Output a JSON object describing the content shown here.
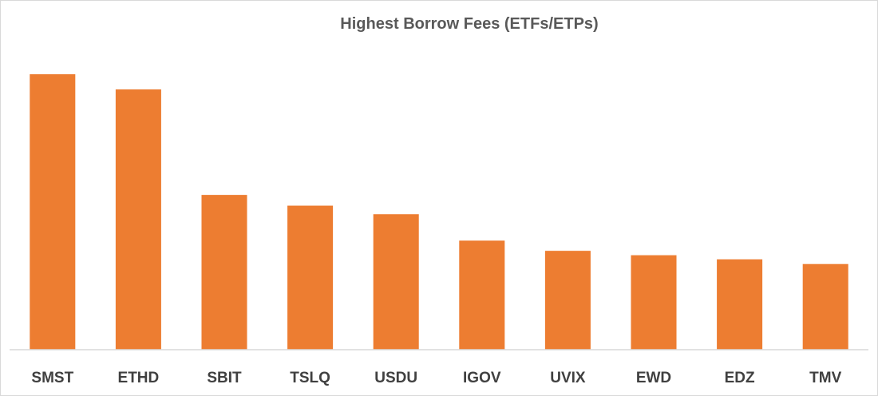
{
  "chart_data": {
    "type": "bar",
    "title": "Highest Borrow Fees (ETFs/ETPs)",
    "xlabel": "",
    "ylabel": "",
    "categories": [
      "SMST",
      "ETHD",
      "SBIT",
      "TSLQ",
      "USDU",
      "IGOV",
      "UVIX",
      "EWD",
      "EDZ",
      "TMV"
    ],
    "values": [
      100,
      94.5,
      56.2,
      52.3,
      49.2,
      39.6,
      35.9,
      34.3,
      32.8,
      31.1
    ],
    "ylim": [
      0,
      100
    ],
    "grid": false,
    "legend": "none",
    "bar_color": "#ED7D31",
    "axis_color": "#d9d9d9"
  }
}
